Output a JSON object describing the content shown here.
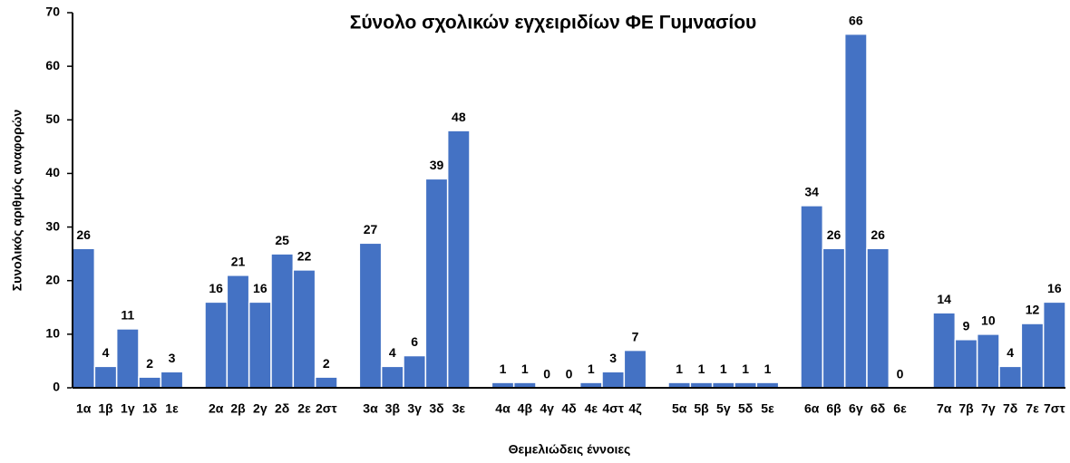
{
  "chart_data": {
    "type": "bar",
    "title": "Σύνολο σχολικών εγχειριδίων ΦΕ Γυμνασίου",
    "y_label": "Συνολικός αριθμός αναφορών",
    "x_label": "Θεμελιώδεις έννοιες",
    "categories": [
      "1α",
      "1β",
      "1γ",
      "1δ",
      "1ε",
      null,
      "2α",
      "2β",
      "2γ",
      "2δ",
      "2ε",
      "2στ",
      null,
      "3α",
      "3β",
      "3γ",
      "3δ",
      "3ε",
      null,
      "4α",
      "4β",
      "4γ",
      "4δ",
      "4ε",
      "4στ",
      "4ζ",
      null,
      "5α",
      "5β",
      "5γ",
      "5δ",
      "5ε",
      null,
      "6α",
      "6β",
      "6γ",
      "6δ",
      "6ε",
      null,
      "7α",
      "7β",
      "7γ",
      "7δ",
      "7ε",
      "7στ"
    ],
    "values": [
      26,
      4,
      11,
      2,
      3,
      null,
      16,
      21,
      16,
      25,
      22,
      2,
      null,
      27,
      4,
      6,
      39,
      48,
      null,
      1,
      1,
      0,
      0,
      1,
      3,
      7,
      null,
      1,
      1,
      1,
      1,
      1,
      null,
      34,
      26,
      66,
      26,
      0,
      null,
      14,
      9,
      10,
      4,
      12,
      16
    ],
    "color": "#4472c4",
    "ylim": [
      0,
      70
    ],
    "yticks": [
      0,
      10,
      20,
      30,
      40,
      50,
      60,
      70
    ],
    "grid": false
  }
}
